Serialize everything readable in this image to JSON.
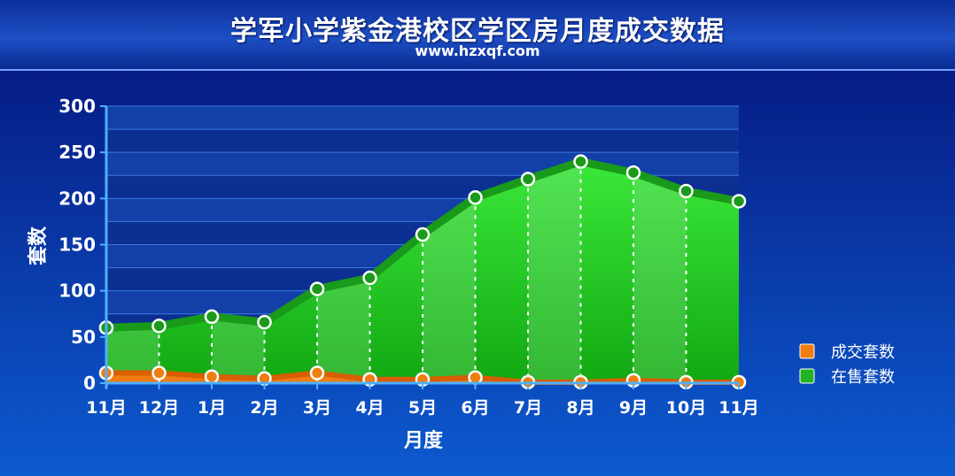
{
  "title": "学军小学紫金港校区学区房月度成交数据",
  "subtitle": "www.hzxqf.com",
  "colors": {
    "background_top": "#04117a",
    "background_bottom": "#0c5ad0",
    "listed_fill": "#2ec82e",
    "listed_line": "#1a9a1a",
    "sold_fill": "#f07d10",
    "sold_line": "#d85e00"
  },
  "chart_data": {
    "type": "area",
    "xlabel": "月度",
    "ylabel": "套数",
    "ylim": [
      0,
      300
    ],
    "yticks": [
      0,
      50,
      100,
      150,
      200,
      250,
      300
    ],
    "grid": true,
    "legend_position": "right",
    "categories": [
      "11月",
      "12月",
      "1月",
      "2月",
      "3月",
      "4月",
      "5月",
      "6月",
      "7月",
      "8月",
      "9月",
      "10月",
      "11月"
    ],
    "series": [
      {
        "name": "成交套数",
        "color": "#f07d10",
        "values": [
          11,
          11,
          7,
          5,
          11,
          4,
          4,
          6,
          1,
          1,
          3,
          1,
          1
        ]
      },
      {
        "name": "在售套数",
        "color": "#2ec82e",
        "values": [
          60,
          62,
          72,
          66,
          102,
          114,
          161,
          201,
          221,
          240,
          228,
          208,
          197
        ]
      }
    ]
  }
}
